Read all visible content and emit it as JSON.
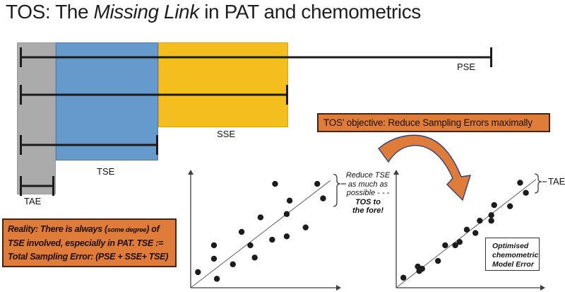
{
  "title": {
    "prefix": "TOS: The ",
    "emphasis": "Missing Link",
    "suffix": " in PAT and chemometrics"
  },
  "colors": {
    "gray": "#ACABAB",
    "blue": "#6699CC",
    "amber": "#F4BF1E",
    "orange": "#E07C3A",
    "orange_border": "#47230A",
    "navy": "#27447E",
    "ink": "#1C1C1C"
  },
  "bar_diagram": {
    "labels": {
      "pse": "PSE",
      "sse": "SSE",
      "tse": "TSE",
      "tae": "TAE"
    }
  },
  "objective": {
    "text": "TOS’ objective: Reduce Sampling Errors maximally"
  },
  "reality": {
    "l1a": "Reality: There is always (",
    "l1b_small": "some degree",
    "l1c": ") of",
    "l2": "TSE involved, especially in PAT. TSE :=",
    "l3": "Total Sampling Error: (PSE + SSE+ TSE)"
  },
  "annotation": {
    "lines": [
      "Reduce TSE",
      "as much as",
      "possible - - -",
      "TOS to",
      "the fore!"
    ]
  },
  "optimised": {
    "lines": [
      "Optimised",
      "chemometric",
      "Model Error"
    ]
  },
  "plots": {
    "after_callout": "TAE"
  },
  "chart_data": [
    {
      "type": "bar",
      "subtype": "nested-sampling-error-whiskers",
      "orientation": "horizontal",
      "title": "Nested sampling errors (TAE within TSE within SSE within PSE)",
      "series": [
        {
          "name": "PSE",
          "relative_extent": 100
        },
        {
          "name": "SSE",
          "relative_extent": 57
        },
        {
          "name": "TSE",
          "relative_extent": 29
        },
        {
          "name": "TAE",
          "relative_extent": 7
        }
      ],
      "blocks": [
        {
          "name": "TAE",
          "color": "gray"
        },
        {
          "name": "TSE",
          "color": "blue"
        },
        {
          "name": "SSE",
          "color": "amber"
        }
      ],
      "note": "conceptual diagram; no numeric axis shown"
    },
    {
      "type": "scatter",
      "id": "before",
      "title": "Predicted vs reference with large TSE (before TOS)",
      "x_range": [
        0,
        100
      ],
      "y_range": [
        0,
        100
      ],
      "diagonal": [
        0,
        96
      ],
      "points": [
        [
          5,
          14
        ],
        [
          16,
          38
        ],
        [
          16,
          26
        ],
        [
          18,
          8
        ],
        [
          29,
          21
        ],
        [
          35,
          50
        ],
        [
          41,
          38
        ],
        [
          44,
          27
        ],
        [
          48,
          63
        ],
        [
          56,
          43
        ],
        [
          58,
          93
        ],
        [
          66,
          66
        ],
        [
          66,
          46
        ],
        [
          68,
          78
        ],
        [
          79,
          54
        ],
        [
          87,
          93
        ],
        [
          91,
          80
        ]
      ],
      "axes": "unlabelled arrow axes, identity line"
    },
    {
      "type": "scatter",
      "id": "after",
      "title": "Optimised chemometric model error (after TOS, only TAE left)",
      "x_range": [
        0,
        100
      ],
      "y_range": [
        0,
        100
      ],
      "diagonal": [
        0,
        97
      ],
      "points": [
        [
          5,
          9
        ],
        [
          15,
          19
        ],
        [
          16,
          15
        ],
        [
          18,
          17
        ],
        [
          29,
          24
        ],
        [
          34,
          38
        ],
        [
          41,
          38
        ],
        [
          44,
          41
        ],
        [
          49,
          52
        ],
        [
          55,
          49
        ],
        [
          58,
          60
        ],
        [
          66,
          65
        ],
        [
          66,
          60
        ],
        [
          68,
          74
        ],
        [
          79,
          73
        ],
        [
          86,
          94
        ],
        [
          90,
          85
        ]
      ],
      "axes": "unlabelled arrow axes, identity line"
    }
  ]
}
